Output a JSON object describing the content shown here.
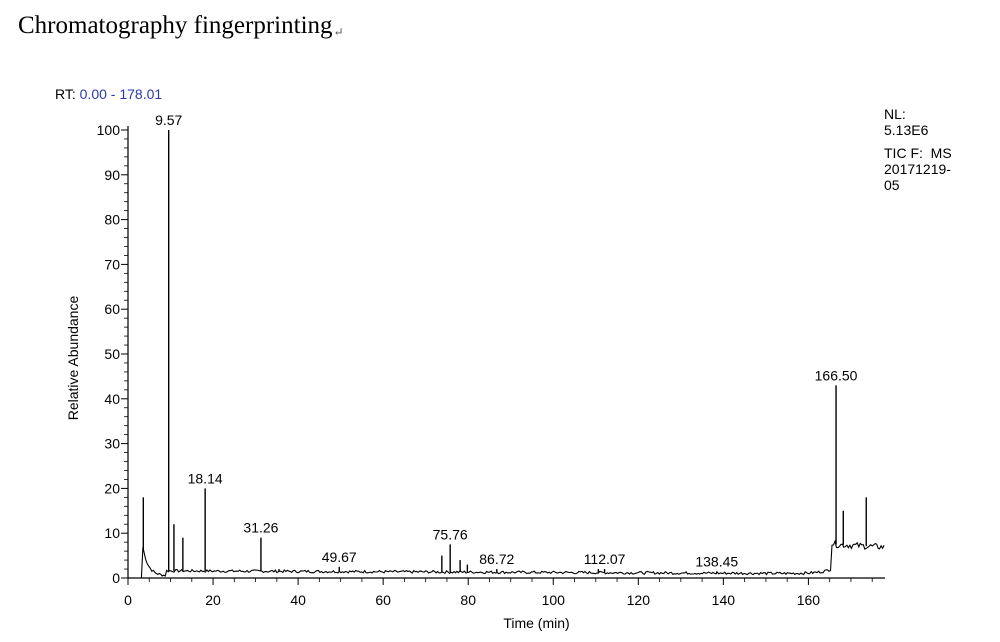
{
  "page": {
    "title": "Chromatography fingerprinting",
    "paragraph_mark": "↵"
  },
  "chart_data": {
    "type": "line",
    "title": "Chromatography fingerprinting",
    "rt_prefix": "RT: ",
    "rt_range": "0.00 - 178.01",
    "xlabel": "Time (min)",
    "ylabel": "Relative Abundance",
    "xlim": [
      0,
      178.01
    ],
    "ylim": [
      0,
      100
    ],
    "xticks": [
      0,
      20,
      40,
      60,
      80,
      100,
      120,
      140,
      160
    ],
    "yticks": [
      0,
      10,
      20,
      30,
      40,
      50,
      60,
      70,
      80,
      90,
      100
    ],
    "info": {
      "nl_label": "NL:",
      "nl_value": "5.13E6",
      "tic_line": "TIC F:  MS",
      "file_line1": "20171219-",
      "file_line2": "05"
    },
    "peak_labels": [
      {
        "rt": 9.57,
        "label": "9.57",
        "height": 100
      },
      {
        "rt": 18.14,
        "label": "18.14",
        "height": 20
      },
      {
        "rt": 31.26,
        "label": "31.26",
        "height": 9
      },
      {
        "rt": 49.67,
        "label": "49.67",
        "height": 2.5
      },
      {
        "rt": 75.76,
        "label": "75.76",
        "height": 7.5
      },
      {
        "rt": 86.72,
        "label": "86.72",
        "height": 2
      },
      {
        "rt": 112.07,
        "label": "112.07",
        "height": 2
      },
      {
        "rt": 138.45,
        "label": "138.45",
        "height": 1.5
      },
      {
        "rt": 166.5,
        "label": "166.50",
        "height": 43
      }
    ],
    "peaks": [
      {
        "rt": 3.6,
        "height": 18
      },
      {
        "rt": 9.57,
        "height": 100
      },
      {
        "rt": 10.8,
        "height": 12
      },
      {
        "rt": 12.9,
        "height": 9
      },
      {
        "rt": 18.14,
        "height": 20
      },
      {
        "rt": 31.26,
        "height": 9
      },
      {
        "rt": 35.5,
        "height": 2
      },
      {
        "rt": 49.67,
        "height": 2.5
      },
      {
        "rt": 73.8,
        "height": 5
      },
      {
        "rt": 75.76,
        "height": 7.5
      },
      {
        "rt": 78.1,
        "height": 4
      },
      {
        "rt": 79.8,
        "height": 3
      },
      {
        "rt": 86.72,
        "height": 2
      },
      {
        "rt": 110.6,
        "height": 2
      },
      {
        "rt": 112.07,
        "height": 2
      },
      {
        "rt": 138.45,
        "height": 1.5
      },
      {
        "rt": 166.5,
        "height": 43
      },
      {
        "rt": 168.2,
        "height": 15
      },
      {
        "rt": 173.6,
        "height": 18
      }
    ]
  }
}
